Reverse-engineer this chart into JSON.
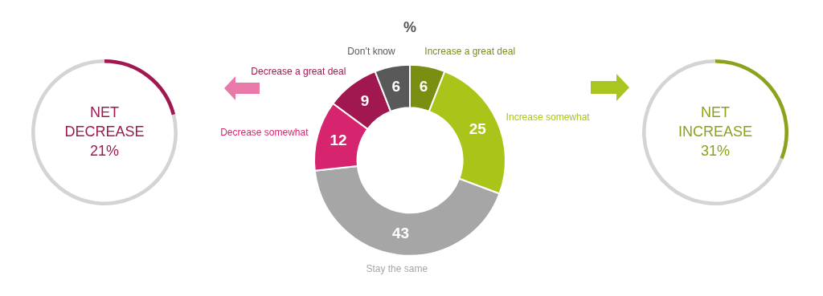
{
  "chart_data": [
    {
      "type": "donut",
      "categories": [
        null,
        null
      ],
      "values": [
        21,
        79
      ],
      "colors": [
        "#a0184f",
        "#d4d4d4"
      ],
      "annotations": [
        "NET DECREASE 21%"
      ]
    },
    {
      "type": "donut",
      "title": "%",
      "categories": [
        "Increase a great deal",
        "Increase somewhat",
        "Stay the same",
        "Decrease somewhat",
        "Decrease a great deal",
        "Don’t know"
      ],
      "values": [
        6,
        25,
        43,
        12,
        9,
        6
      ],
      "colors": [
        "#7a8f12",
        "#abc41a",
        "#a6a6a6",
        "#d6246e",
        "#a0184f",
        "#595959"
      ],
      "data_labels": true,
      "legend": false
    },
    {
      "type": "donut",
      "categories": [
        null,
        null
      ],
      "values": [
        31,
        69
      ],
      "colors": [
        "#8aa31c",
        "#d4d4d4"
      ],
      "annotations": [
        "NET INCREASE 31%"
      ]
    }
  ]
}
